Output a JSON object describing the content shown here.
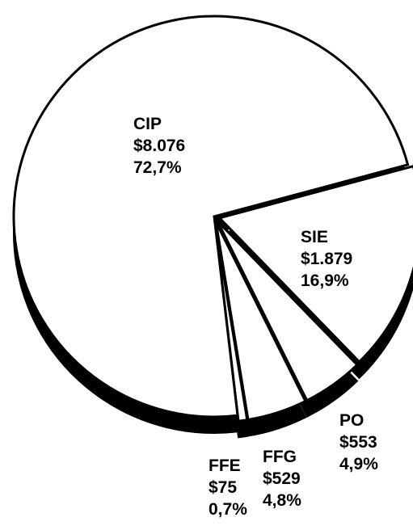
{
  "chart_data": {
    "type": "pie",
    "categories": [
      "CIP",
      "SIE",
      "PO",
      "FFG",
      "FFE"
    ],
    "values": [
      72.7,
      16.9,
      4.9,
      4.8,
      0.7
    ],
    "value_labels": [
      "72,7%",
      "16,9%",
      "4,9%",
      "4,8%",
      "0,7%"
    ],
    "amounts": [
      8076,
      1879,
      553,
      529,
      75
    ],
    "amount_labels": [
      "$8.076",
      "$1.879",
      "$553",
      "$529",
      "$75"
    ],
    "color": "#ffffff"
  }
}
